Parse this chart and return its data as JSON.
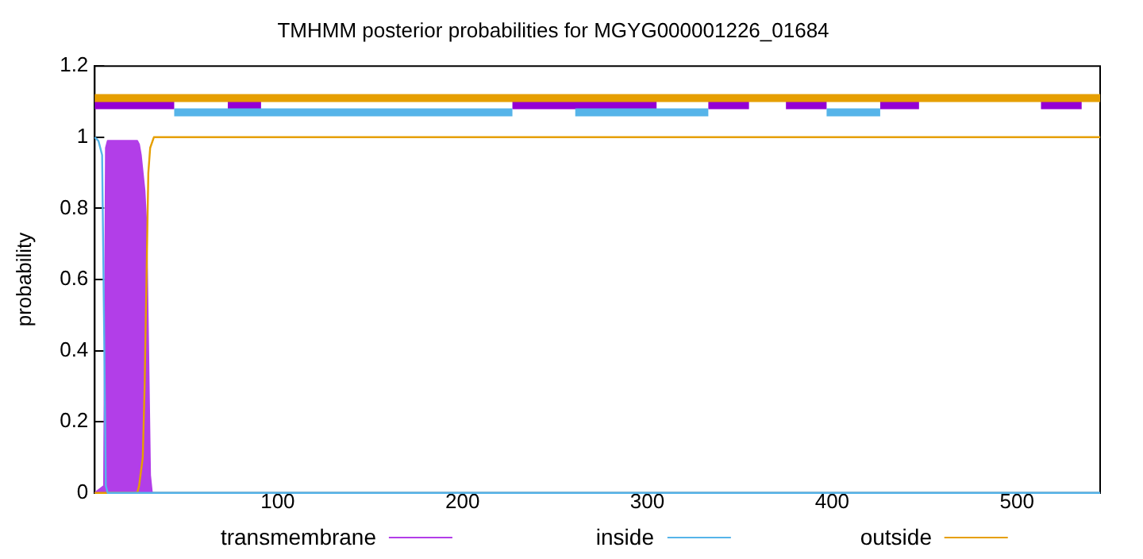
{
  "chart_data": {
    "type": "line",
    "title": "TMHMM posterior probabilities for MGYG000001226_01684",
    "ylabel": "probability",
    "xlim": [
      1,
      545
    ],
    "xticks": [
      100,
      200,
      300,
      400,
      500
    ],
    "ylim": [
      0,
      1.2
    ],
    "yticks": [
      0,
      0.2,
      0.4,
      0.6,
      0.8,
      1,
      1.2
    ],
    "grid": false,
    "legend": "bottom",
    "marker": "none",
    "series": [
      {
        "name": "transmembrane",
        "type": "area",
        "color": "#b23ee8",
        "x": [
          1,
          6,
          7,
          8,
          24,
          25,
          26,
          27,
          28,
          29,
          30,
          31,
          32
        ],
        "values": [
          0,
          0.02,
          0.97,
          0.99,
          0.99,
          0.98,
          0.95,
          0.9,
          0.85,
          0.75,
          0.4,
          0.05,
          0
        ]
      },
      {
        "name": "inside",
        "color": "#56b4e9",
        "x": [
          1,
          3,
          5,
          6,
          7,
          8,
          545
        ],
        "values": [
          1,
          0.99,
          0.95,
          0.5,
          0.02,
          0,
          0
        ]
      },
      {
        "name": "outside",
        "color": "#e69f00",
        "x": [
          1,
          24,
          25,
          27,
          28,
          29,
          30,
          31,
          33,
          545
        ],
        "values": [
          0,
          0,
          0.02,
          0.1,
          0.3,
          0.6,
          0.9,
          0.97,
          1,
          1
        ]
      },
      {
        "color": "#e69f00",
        "x": [
          1,
          545
        ],
        "values": [
          1.11,
          1.11
        ]
      },
      {
        "color": "#56b4e9",
        "x": [
          44,
          227
        ],
        "values": [
          1.07,
          1.07
        ]
      },
      {
        "color": "#56b4e9",
        "x": [
          261,
          333
        ],
        "values": [
          1.07,
          1.07
        ]
      },
      {
        "color": "#56b4e9",
        "x": [
          397,
          426
        ],
        "values": [
          1.07,
          1.07
        ]
      },
      {
        "color": "#9400d3",
        "x": [
          1,
          44
        ],
        "values": [
          1.09,
          1.09
        ]
      },
      {
        "color": "#9400d3",
        "x": [
          73,
          91
        ],
        "values": [
          1.09,
          1.09
        ]
      },
      {
        "color": "#9400d3",
        "x": [
          227,
          305
        ],
        "values": [
          1.09,
          1.09
        ]
      },
      {
        "color": "#9400d3",
        "x": [
          333,
          355
        ],
        "values": [
          1.09,
          1.09
        ]
      },
      {
        "color": "#9400d3",
        "x": [
          375,
          397
        ],
        "values": [
          1.09,
          1.09
        ]
      },
      {
        "color": "#9400d3",
        "x": [
          426,
          447
        ],
        "values": [
          1.09,
          1.09
        ]
      },
      {
        "color": "#9400d3",
        "x": [
          513,
          535
        ],
        "values": [
          1.09,
          1.09
        ]
      }
    ]
  }
}
